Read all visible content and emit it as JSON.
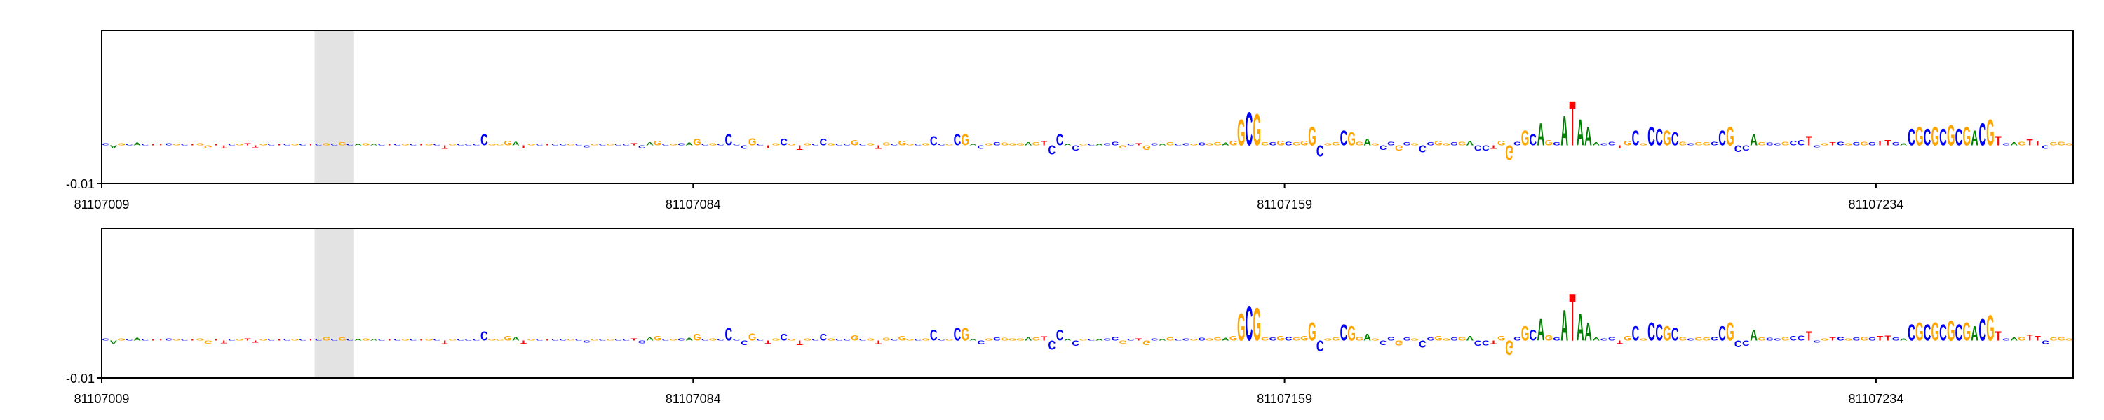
{
  "chart_data": [
    {
      "type": "logo",
      "xlim": [
        81107009,
        81107259
      ],
      "xticks": [
        81107009,
        81107084,
        81107159,
        81107234
      ],
      "ylim": [
        -0.01,
        0.03
      ],
      "yticks": [
        -0.01
      ],
      "highlight": [
        81107036,
        81107041
      ],
      "colors": {
        "A": "#008000",
        "C": "#0000ff",
        "G": "#ffa500",
        "T": "#ff0000"
      },
      "sequence": "CAGCACTTCGCTGGTTCGTTGCTCGCTCGCGCAGACTCGCTGCTGCCCCGGGATGCTCCGCCGCGCCTCAGCGCAGCGCCCCGCTGCGTGCCGCCGCGTGCGGCGCCGCGACGCGGGAGTCCACGCACCGCTGCAGCCGCGGAGGCGGCGCGGGCGGCGGAGCCGCGCCGGCGACCTGGCGCAGCATAAACCTGCGCCGCGCGGCCGCCAGCCGCCTCGTCGCGCTTCACGCGCGCGACGTCAGTTCGGG",
      "values": [
        0.0006,
        -0.0008,
        0.0006,
        0.0005,
        0.0007,
        0.0004,
        0.0005,
        0.0005,
        0.0006,
        0.0005,
        0.0004,
        0.0005,
        0.0006,
        -0.0008,
        0.0005,
        -0.0007,
        0.0004,
        0.0005,
        0.0006,
        -0.0006,
        0.0005,
        0.0004,
        0.0003,
        0.0004,
        0.0005,
        0.0004,
        0.0003,
        0.0004,
        0.0006,
        0.0003,
        0.0008,
        0.0004,
        0.0005,
        0.0006,
        0.0004,
        0.0003,
        0.0005,
        0.0004,
        0.0005,
        0.0003,
        0.0004,
        0.0005,
        0.0003,
        -0.001,
        0.0004,
        0.0004,
        0.0003,
        0.0004,
        0.003,
        0.0005,
        0.0004,
        0.0012,
        0.001,
        -0.0008,
        0.0005,
        0.0003,
        0.0004,
        0.0004,
        0.0005,
        0.0003,
        0.0003,
        -0.0006,
        0.0004,
        0.0004,
        0.0003,
        0.0004,
        0.0003,
        0.0006,
        -0.0007,
        0.0008,
        0.0012,
        0.0004,
        0.0005,
        0.0006,
        0.0007,
        0.0018,
        0.0004,
        0.0006,
        0.0005,
        0.003,
        0.0005,
        -0.001,
        0.002,
        0.0004,
        -0.0008,
        0.0006,
        0.0018,
        0.0005,
        -0.0012,
        0.0006,
        0.0004,
        0.0018,
        0.0006,
        0.0004,
        0.0005,
        0.0015,
        0.0004,
        0.0006,
        -0.001,
        0.0007,
        0.0005,
        0.0012,
        0.0005,
        0.0004,
        0.0006,
        0.0025,
        0.0005,
        0.0004,
        0.003,
        0.003,
        0.0004,
        -0.001,
        0.0006,
        0.0008,
        0.0007,
        0.0006,
        0.0006,
        0.0008,
        0.0009,
        0.0011,
        -0.0025,
        0.003,
        0.0005,
        -0.0015,
        0.0004,
        0.0004,
        0.0005,
        0.0006,
        0.001,
        -0.0008,
        0.0005,
        0.0006,
        -0.0012,
        0.0006,
        0.0005,
        0.0008,
        0.0004,
        0.0006,
        0.0005,
        0.0007,
        0.0006,
        0.0008,
        0.0007,
        0.0012,
        0.007,
        0.009,
        0.0085,
        0.0009,
        0.0008,
        0.0012,
        0.001,
        0.0008,
        0.0012,
        0.005,
        -0.003,
        0.0006,
        0.0008,
        0.004,
        0.0035,
        0.001,
        0.0018,
        0.0006,
        -0.0012,
        0.001,
        -0.0014,
        0.0008,
        0.0006,
        -0.002,
        0.0008,
        0.0012,
        0.0006,
        0.0008,
        0.001,
        0.0012,
        -0.0015,
        -0.0014,
        -0.001,
        0.0012,
        -0.004,
        0.001,
        0.004,
        0.003,
        0.006,
        0.0015,
        0.0008,
        0.008,
        0.012,
        0.007,
        0.005,
        0.0008,
        0.0006,
        0.001,
        -0.0008,
        0.0012,
        0.004,
        0.0006,
        0.005,
        0.0045,
        0.004,
        0.0035,
        0.001,
        0.0006,
        0.0008,
        0.0008,
        0.001,
        0.004,
        0.005,
        -0.0018,
        -0.0015,
        0.003,
        0.0008,
        0.0007,
        0.0006,
        0.001,
        0.0012,
        0.0014,
        0.0025,
        -0.0006,
        0.0006,
        0.0008,
        0.001,
        0.0006,
        0.0008,
        0.001,
        0.0008,
        0.0012,
        0.0014,
        0.0008,
        0.0006,
        0.0045,
        0.005,
        0.0045,
        0.005,
        0.0045,
        0.0055,
        0.0045,
        0.005,
        0.004,
        0.006,
        0.007,
        0.0025,
        0.0006,
        0.0008,
        0.001,
        0.0016,
        0.0012,
        -0.001,
        0.0008,
        0.001,
        0.0006
      ]
    },
    {
      "type": "logo",
      "xlim": [
        81107009,
        81107259
      ],
      "xticks": [
        81107009,
        81107084,
        81107159,
        81107234
      ],
      "ylim": [
        -0.01,
        0.03
      ],
      "yticks": [
        -0.01
      ],
      "highlight": [
        81107036,
        81107041
      ],
      "colors": {
        "A": "#008000",
        "C": "#0000ff",
        "G": "#ffa500",
        "T": "#ff0000"
      },
      "sequence": "CAGCACTTCGCTGGTTCGTTGCTCGCTCGCGCAGACTCGCTGCTGCCCCGGGATGCTCCGCCGCGCCTCAGCGCAGCGCCCCGCTGCGTGCCGCCGCGTGCGGCGCCGCGACGCGGGAGTCCACGCACCGCTGCAGCCGCGGAGGCGGCGCGGGCGGCGGAGCCGCGCCGGCGACCTGGCGCAGCATAAACCTGCGCCGCGCGGCCGCCAGCCGCCTCGTCGCGCTTCACGCGCGCGACGTCAGTTCGGG",
      "values": [
        0.0006,
        -0.0008,
        0.0006,
        0.0005,
        0.0007,
        0.0004,
        0.0005,
        0.0005,
        0.0006,
        0.0005,
        0.0004,
        0.0005,
        0.0006,
        -0.0008,
        0.0005,
        -0.0007,
        0.0004,
        0.0005,
        0.0006,
        -0.0006,
        0.0005,
        0.0004,
        0.0003,
        0.0004,
        0.0005,
        0.0004,
        0.0003,
        0.0004,
        0.001,
        0.0003,
        0.0008,
        0.0004,
        0.0005,
        0.0006,
        0.0004,
        0.0003,
        0.0005,
        0.0004,
        0.0005,
        0.0003,
        0.0004,
        0.0005,
        0.0003,
        -0.001,
        0.0004,
        0.0004,
        0.0003,
        0.0004,
        0.0025,
        0.0005,
        0.0004,
        0.0012,
        0.001,
        -0.0008,
        0.0005,
        0.0003,
        0.0004,
        0.0004,
        0.0005,
        0.0003,
        0.0003,
        -0.0006,
        0.0004,
        0.0004,
        0.0003,
        0.0004,
        0.0003,
        0.0006,
        -0.0007,
        0.0008,
        0.0012,
        0.0004,
        0.0005,
        0.0006,
        0.0007,
        0.0018,
        0.0004,
        0.0006,
        0.0005,
        0.0035,
        0.0005,
        -0.0012,
        0.002,
        0.0004,
        -0.0008,
        0.0006,
        0.0018,
        0.0005,
        -0.0012,
        0.0006,
        0.0004,
        0.0018,
        0.0006,
        0.0004,
        0.0005,
        0.0015,
        0.0004,
        0.0006,
        -0.001,
        0.0007,
        0.0005,
        0.0012,
        0.0005,
        0.0004,
        0.0006,
        0.003,
        0.0005,
        0.0004,
        0.0035,
        0.0035,
        0.0004,
        -0.001,
        0.0006,
        0.0008,
        0.0007,
        0.0006,
        0.0006,
        0.0008,
        0.0009,
        0.0011,
        -0.0025,
        0.003,
        0.0005,
        -0.0015,
        0.0004,
        0.0004,
        0.0005,
        0.0006,
        0.001,
        -0.0008,
        0.0005,
        0.0006,
        -0.0012,
        0.0006,
        0.0005,
        0.0008,
        0.0004,
        0.0006,
        0.0005,
        0.0007,
        0.0006,
        0.0008,
        0.0007,
        0.0012,
        0.0075,
        0.0095,
        0.009,
        0.0009,
        0.0008,
        0.0012,
        0.001,
        0.0008,
        0.0012,
        0.005,
        -0.003,
        0.0006,
        0.0008,
        0.0045,
        0.004,
        0.001,
        0.0018,
        0.0006,
        -0.0012,
        0.001,
        -0.0014,
        0.0008,
        0.0006,
        -0.002,
        0.0008,
        0.0012,
        0.0006,
        0.0008,
        0.001,
        0.0012,
        -0.0015,
        -0.0014,
        -0.001,
        0.0012,
        -0.004,
        0.001,
        0.004,
        0.003,
        0.006,
        0.0015,
        0.0008,
        0.0085,
        0.013,
        0.0075,
        0.005,
        0.0008,
        0.0006,
        0.001,
        -0.0008,
        0.0012,
        0.004,
        0.0006,
        0.005,
        0.0045,
        0.004,
        0.0035,
        0.001,
        0.0006,
        0.0008,
        0.0008,
        0.001,
        0.004,
        0.005,
        -0.0018,
        -0.0015,
        0.003,
        0.0008,
        0.0007,
        0.0006,
        0.001,
        0.0012,
        0.0014,
        0.0025,
        -0.0006,
        0.0006,
        0.0008,
        0.001,
        0.0006,
        0.0008,
        0.001,
        0.0008,
        0.0012,
        0.0014,
        0.0008,
        0.0006,
        0.0045,
        0.005,
        0.0045,
        0.005,
        0.0045,
        0.0055,
        0.0045,
        0.005,
        0.004,
        0.006,
        0.007,
        0.0025,
        0.0006,
        0.0008,
        0.001,
        0.0016,
        0.0012,
        -0.001,
        0.0008,
        0.001,
        0.0006
      ]
    }
  ]
}
